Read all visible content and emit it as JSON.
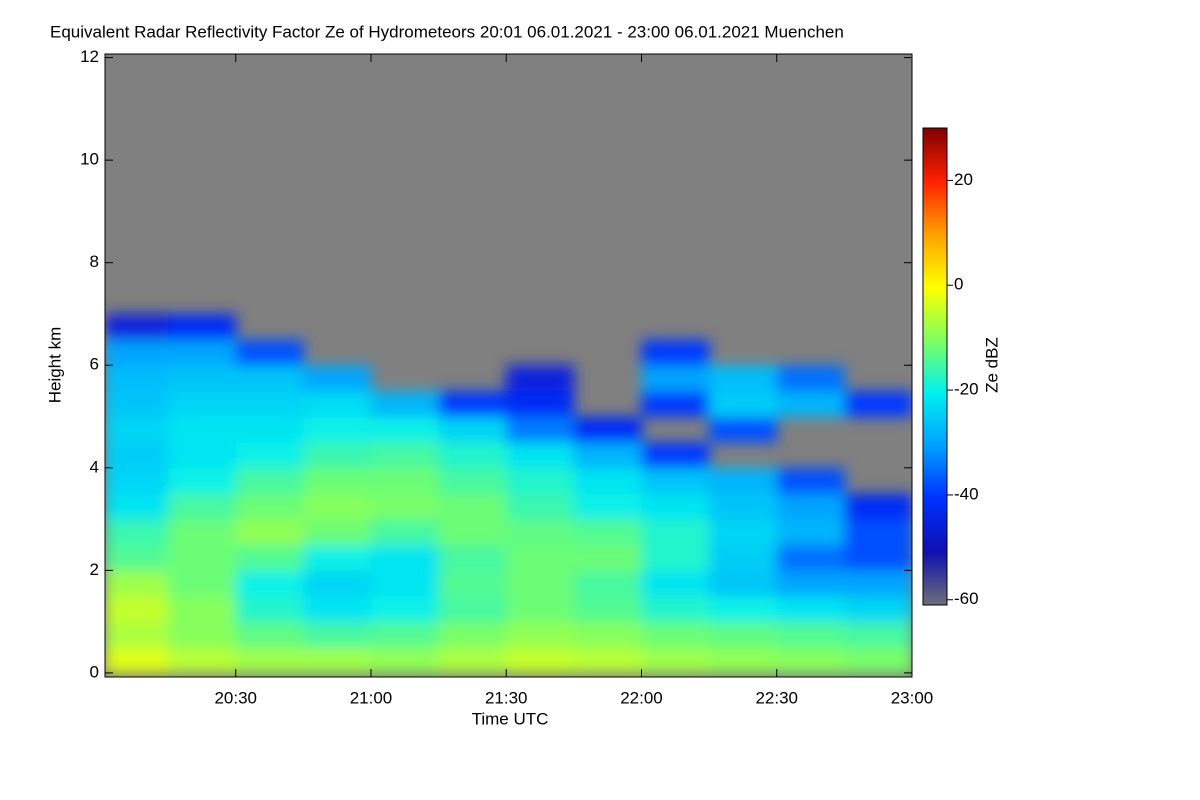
{
  "chart_data": {
    "type": "heatmap",
    "title": "Equivalent Radar Reflectivity Factor Ze of Hydrometeors   20:01 06.01.2021 - 23:00 06.01.2021 Muenchen",
    "xlabel": "Time UTC",
    "ylabel": "Height km",
    "colorbar_label": "Ze dBZ",
    "xlim": [
      20.0167,
      23.0
    ],
    "ylim": [
      -0.08,
      12.07
    ],
    "xticks": [
      {
        "value": 20.5,
        "label": "20:30"
      },
      {
        "value": 21,
        "label": "21:00"
      },
      {
        "value": 21.5,
        "label": "21:30"
      },
      {
        "value": 22,
        "label": "22:00"
      },
      {
        "value": 22.5,
        "label": "22:30"
      },
      {
        "value": 23,
        "label": "23:00"
      }
    ],
    "yticks": [
      0,
      2,
      4,
      6,
      8,
      10,
      12
    ],
    "clim": [
      -61,
      30
    ],
    "cticks": [
      -60,
      -40,
      -20,
      0,
      20
    ],
    "colormap": [
      "#6e6e78",
      "#1010b0",
      "#0030ff",
      "#00a0ff",
      "#00f0f0",
      "#80ff60",
      "#ffff00",
      "#ffa000",
      "#ff2000",
      "#800000"
    ],
    "background_color": "#808080",
    "x_edges": [
      20.0167,
      20.25,
      20.5,
      20.75,
      21,
      21.25,
      21.5,
      21.75,
      22,
      22.25,
      22.5,
      22.75,
      23.0
    ],
    "y_edges": [
      0,
      0.5,
      1,
      1.5,
      2,
      2.5,
      3,
      3.5,
      4,
      4.5,
      5,
      5.5,
      6,
      6.5,
      7
    ],
    "z": [
      [
        -3,
        -6,
        -8,
        -8,
        -9,
        -7,
        -5,
        -6,
        -8,
        -9,
        -10,
        -11
      ],
      [
        -7,
        -10,
        -13,
        -15,
        -14,
        -11,
        -9,
        -10,
        -12,
        -13,
        -14,
        -15
      ],
      [
        -5,
        -10,
        -18,
        -22,
        -20,
        -15,
        -12,
        -14,
        -18,
        -20,
        -22,
        -24
      ],
      [
        -8,
        -12,
        -20,
        -24,
        -22,
        -14,
        -12,
        -15,
        -22,
        -26,
        -30,
        -30
      ],
      [
        -14,
        -12,
        -14,
        -20,
        -22,
        -15,
        -12,
        -12,
        -18,
        -25,
        -35,
        -38
      ],
      [
        -16,
        -12,
        -9,
        -12,
        -15,
        -12,
        -13,
        -14,
        -18,
        -24,
        -28,
        -38
      ],
      [
        -22,
        -15,
        -12,
        -10,
        -11,
        -12,
        -16,
        -20,
        -22,
        -26,
        -30,
        -42
      ],
      [
        -24,
        -20,
        -15,
        -12,
        -12,
        -15,
        -18,
        -22,
        -26,
        -28,
        -38,
        null
      ],
      [
        -25,
        -22,
        -20,
        -16,
        -15,
        -18,
        -22,
        -28,
        -40,
        null,
        null,
        null
      ],
      [
        -24,
        -22,
        -22,
        -20,
        -20,
        -24,
        -34,
        -42,
        null,
        -38,
        null,
        null
      ],
      [
        -26,
        -24,
        -24,
        -23,
        -28,
        -40,
        -42,
        null,
        -40,
        -25,
        -28,
        -40
      ],
      [
        -27,
        -26,
        -26,
        -30,
        null,
        null,
        -45,
        null,
        -30,
        -27,
        -35,
        null
      ],
      [
        -30,
        -30,
        -38,
        null,
        null,
        null,
        null,
        null,
        -40,
        null,
        null,
        null
      ],
      [
        -45,
        -42,
        null,
        null,
        null,
        null,
        null,
        null,
        null,
        null,
        null,
        null
      ]
    ]
  }
}
